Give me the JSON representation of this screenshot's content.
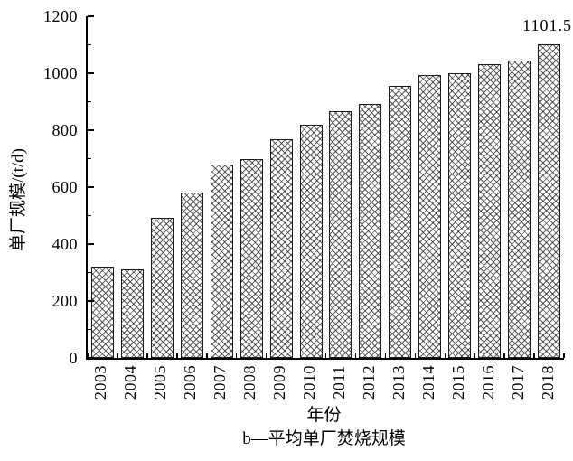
{
  "figure": {
    "y_axis_title": "单厂规模/(t/d)",
    "x_axis_title": "年份",
    "caption": "b—平均单厂焚烧规模",
    "annotation_text": "1101.5"
  },
  "colors": {
    "axis": "#000000",
    "text": "#000000",
    "bar_fill": "#ffffff",
    "bar_hatch": "#2d2d2d",
    "background": "#ffffff"
  },
  "chart_data": {
    "type": "bar",
    "title": "",
    "xlabel": "年份",
    "ylabel": "单厂规模/(t/d)",
    "caption": "b—平均单厂焚烧规模",
    "categories": [
      "2003",
      "2004",
      "2005",
      "2006",
      "2007",
      "2008",
      "2009",
      "2010",
      "2011",
      "2012",
      "2013",
      "2014",
      "2015",
      "2016",
      "2017",
      "2018"
    ],
    "values": [
      320,
      311,
      492,
      580,
      679,
      700,
      768,
      819,
      866,
      891,
      957,
      994,
      1001,
      1031,
      1046,
      1101.5
    ],
    "ylim": [
      0,
      1200
    ],
    "yticks": [
      0,
      200,
      400,
      600,
      800,
      1000,
      1200
    ],
    "minor_ytick_step": 100,
    "grid": false,
    "legend": "none",
    "bar_pattern": "crosshatch",
    "annotations": [
      {
        "category": "2018",
        "text": "1101.5"
      }
    ]
  }
}
